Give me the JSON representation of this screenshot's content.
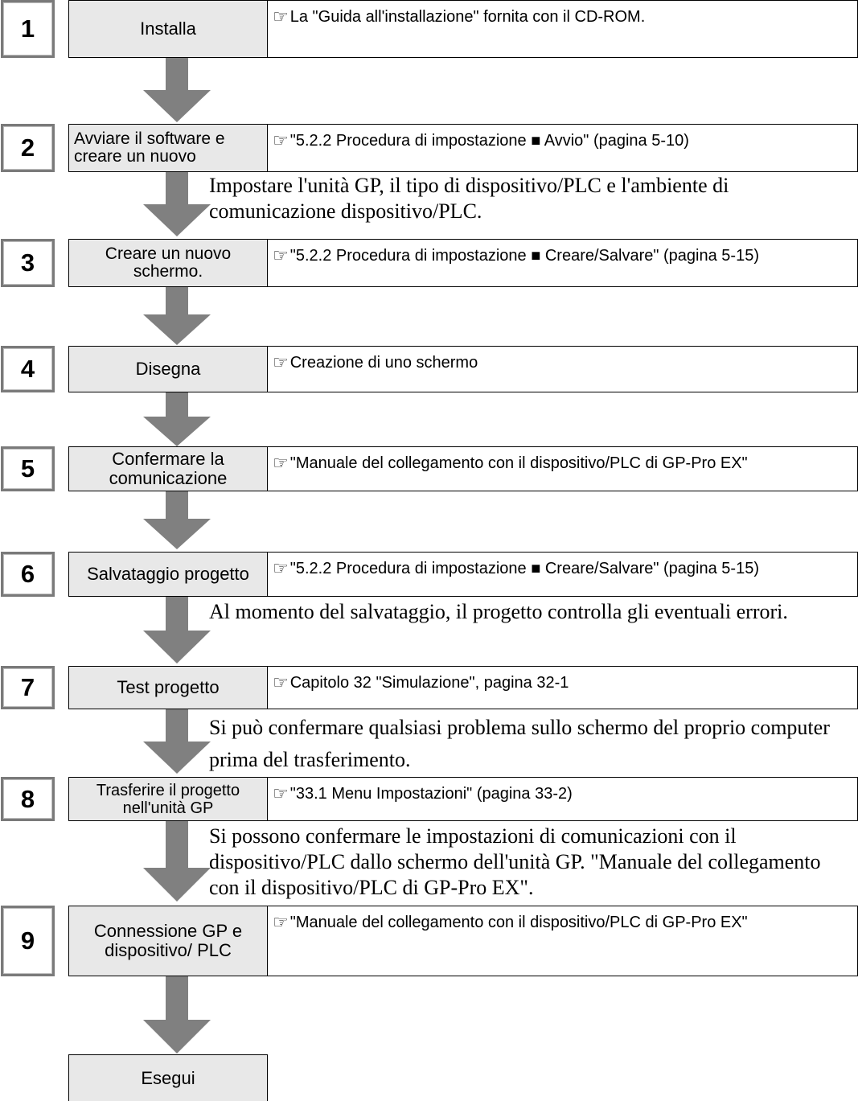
{
  "reference_icon": "pointing-hand-icon",
  "colors": {
    "step_fill": "#e8e8e8",
    "arrow": "#808080",
    "number_border": "#7a7a7a"
  },
  "steps": [
    {
      "number": "1",
      "label": "Installa",
      "reference": "La \"Guida all'installazione\" fornita con il CD-ROM."
    },
    {
      "number": "2",
      "label": "Avviare il software e creare un nuovo",
      "reference": "\"5.2.2 Procedura di impostazione ■ Avvio\" (pagina 5-10)"
    },
    {
      "number": "3",
      "label": "Creare un nuovo schermo.",
      "reference": "\"5.2.2 Procedura di impostazione ■ Creare/Salvare\" (pagina 5-15)"
    },
    {
      "number": "4",
      "label": "Disegna",
      "reference": "Creazione di uno schermo"
    },
    {
      "number": "5",
      "label": "Confermare la comunicazione",
      "reference": "\"Manuale del collegamento con il dispositivo/PLC di GP-Pro EX\""
    },
    {
      "number": "6",
      "label": "Salvataggio progetto",
      "reference": "\"5.2.2 Procedura di impostazione ■ Creare/Salvare\" (pagina 5-15)"
    },
    {
      "number": "7",
      "label": "Test progetto",
      "reference": "Capitolo 32 \"Simulazione\", pagina 32-1"
    },
    {
      "number": "8",
      "label": "Trasferire il progetto nell'unità GP",
      "reference": "\"33.1 Menu Impostazioni\" (pagina 33-2)"
    },
    {
      "number": "9",
      "label": "Connessione GP e dispositivo/ PLC",
      "reference": "\"Manuale del collegamento con il dispositivo/PLC di GP-Pro EX\""
    }
  ],
  "final_step": {
    "label": "Esegui"
  },
  "notes": {
    "after_2": "Impostare l'unità GP, il tipo di dispositivo/PLC e l'ambiente di comunicazione dispositivo/PLC.",
    "after_6": "Al momento del salvataggio, il progetto controlla gli eventuali errori.",
    "after_7": "Si può confermare qualsiasi problema sullo schermo del proprio computer prima del trasferimento.",
    "after_8": "Si possono confermare le impostazioni di comunicazioni con il dispositivo/PLC dallo schermo dell'unità GP. \"Manuale del collegamento con il dispositivo/PLC di GP-Pro EX\"."
  }
}
